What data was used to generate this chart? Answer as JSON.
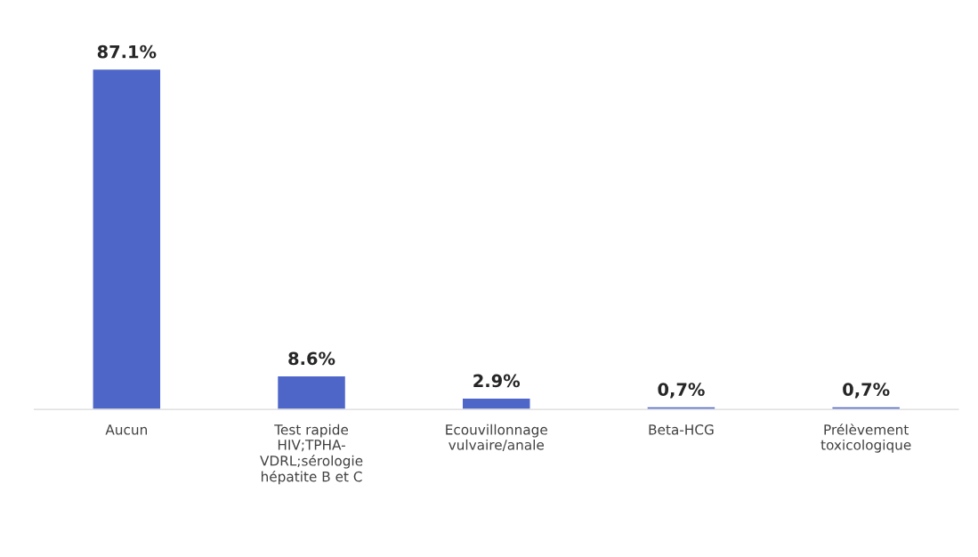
{
  "chart_data": {
    "type": "bar",
    "categories": [
      "Aucun",
      "Test rapide\nHIV;TPHA-\nVDRL;sérologie\nhépatite B et C",
      "Ecouvillonnage\nvulvaire/anale",
      "Beta-HCG",
      "Prélèvement\ntoxicologique"
    ],
    "values": [
      87.1,
      8.6,
      2.9,
      0.7,
      0.7
    ],
    "value_labels": [
      "87.1%",
      "8.6%",
      "2.9%",
      "0,7%",
      "0,7%"
    ],
    "color": "#4f66c9",
    "grid": false,
    "legend": false
  }
}
